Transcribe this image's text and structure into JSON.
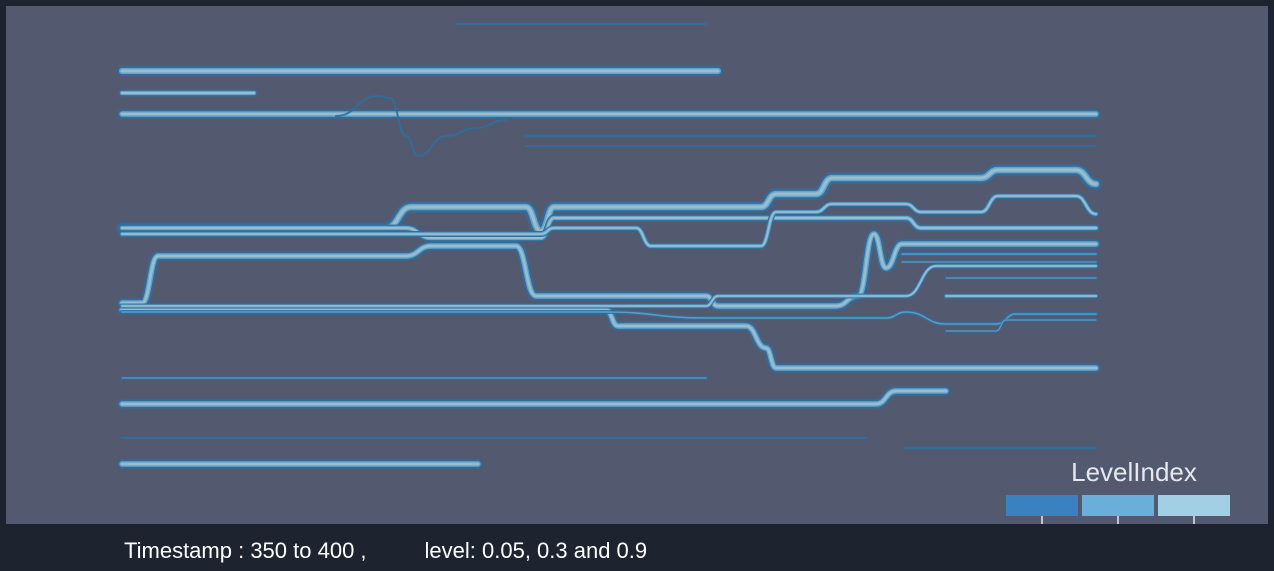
{
  "chart_data": {
    "type": "line",
    "chart_style": "flow-ribbon",
    "legend": {
      "title": "LevelIndex",
      "placement": "bottom-right",
      "swatches": [
        {
          "level": 0.05,
          "color": "#3982bf"
        },
        {
          "level": 0.3,
          "color": "#6aafda"
        },
        {
          "level": 0.9,
          "color": "#a3cfe4"
        }
      ]
    },
    "colors": {
      "background": "#535a70",
      "frame": "#1e2330",
      "outer_band": "#2e6e9e",
      "mid_band": "#6aa6c8",
      "inner_band": "#9fc0cf"
    },
    "caption": {
      "timestamp": "Timestamp : 350 to 400 ,",
      "levels": "level: 0.05, 0.3 and 0.9"
    }
  }
}
